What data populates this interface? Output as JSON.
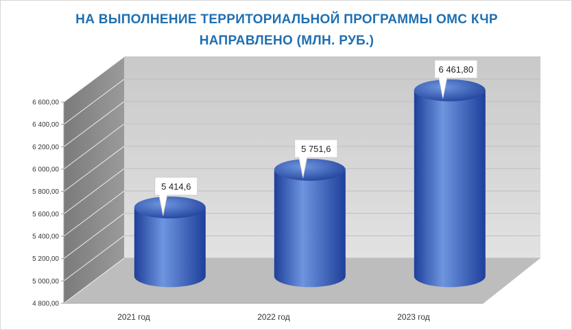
{
  "title": {
    "line1": "НА ВЫПОЛНЕНИЕ ТЕРРИТОРИАЛЬНОЙ ПРОГРАММЫ ОМС КЧР",
    "line2": "НАПРАВЛЕНО (МЛН. РУБ.)"
  },
  "colors": {
    "title": "#1f6fb2",
    "bar_light": "#6e95df",
    "bar_dark": "#1e3f9a",
    "back_wall": "#d9d9d9",
    "side_wall": "#8a8a8a",
    "floor": "#bdbdbd"
  },
  "chart_data": {
    "type": "bar",
    "style": "3d-cylinder",
    "categories": [
      "2021 год",
      "2022 год",
      "2023 год"
    ],
    "values": [
      5414.6,
      5751.6,
      6461.8
    ],
    "value_labels": [
      "5 414,6",
      "5 751,6",
      "6 461,80"
    ],
    "ylim": [
      4800,
      6600
    ],
    "yticks": [
      4800,
      5000,
      5200,
      5400,
      5600,
      5800,
      6000,
      6200,
      6400,
      6600
    ],
    "ytick_labels": [
      "4 800,00",
      "5 000,00",
      "5 200,00",
      "5 400,00",
      "5 600,00",
      "5 800,00",
      "6 000,00",
      "6 200,00",
      "6 400,00",
      "6 600,00"
    ],
    "grid": true,
    "legend": "none",
    "xlabel": "",
    "ylabel": ""
  }
}
